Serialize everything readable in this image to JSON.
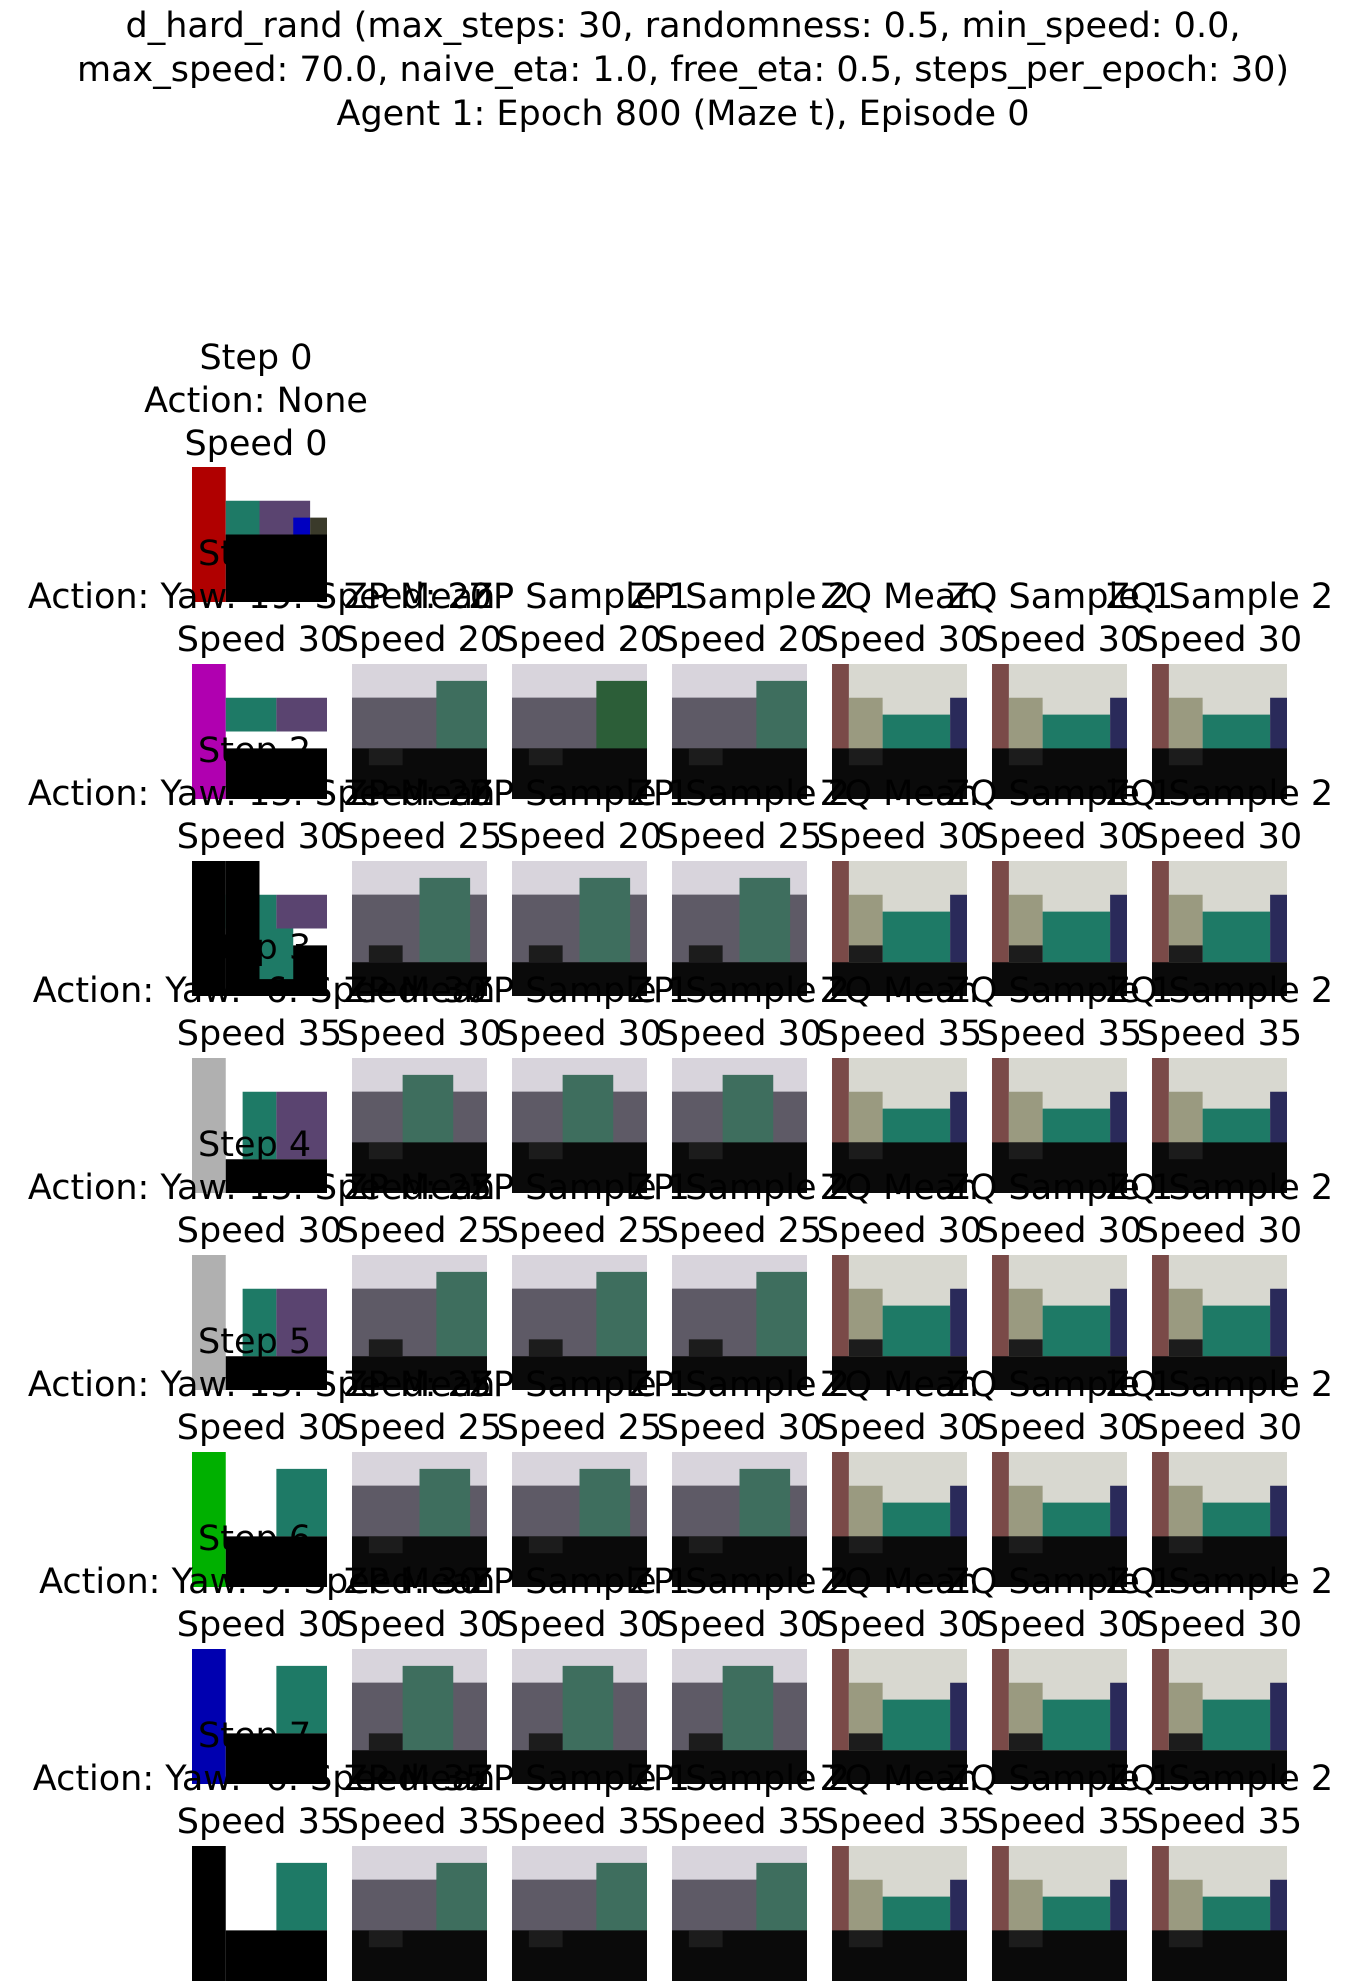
{
  "title": {
    "line1": "d_hard_rand (max_steps: 30, randomness: 0.5, min_speed: 0.0,",
    "line2": "max_speed: 70.0, naive_eta: 1.0, free_eta: 0.5, steps_per_epoch: 30)",
    "line3": "Agent 1: Epoch 800 (Maze t), Episode 0"
  },
  "first": {
    "step": "Step 0",
    "action": "Action: None",
    "speed": "Speed 0"
  },
  "overlays": [
    "Step 1",
    "Step 2",
    "Step 3",
    "Step 4",
    "Step 5",
    "Step 6",
    "Step 7"
  ],
  "rows": [
    {
      "action": "Action: Yaw: 19. Speed: 20",
      "labels": [
        "ZP Mean",
        "ZP Sample 1",
        "ZP Sample 2",
        "ZQ Mean",
        "ZQ Sample 1",
        "ZQ Sample 2"
      ],
      "speeds": [
        "Speed 30",
        "Speed 20",
        "Speed 20",
        "Speed 20",
        "Speed 30",
        "Speed 30",
        "Speed 30"
      ]
    },
    {
      "action": "Action: Yaw: 13. Speed: 20",
      "labels": [
        "ZP Mean",
        "ZP Sample 1",
        "ZP Sample 2",
        "ZQ Mean",
        "ZQ Sample 1",
        "ZQ Sample 2"
      ],
      "speeds": [
        "Speed 30",
        "Speed 25",
        "Speed 20",
        "Speed 25",
        "Speed 30",
        "Speed 30",
        "Speed 30"
      ]
    },
    {
      "action": "Action: Yaw: -6. Speed: 30",
      "labels": [
        "ZP Mean",
        "ZP Sample 1",
        "ZP Sample 2",
        "ZQ Mean",
        "ZQ Sample 1",
        "ZQ Sample 2"
      ],
      "speeds": [
        "Speed 35",
        "Speed 30",
        "Speed 30",
        "Speed 30",
        "Speed 35",
        "Speed 35",
        "Speed 35"
      ]
    },
    {
      "action": "Action: Yaw: 13. Speed: 25",
      "labels": [
        "ZP Mean",
        "ZP Sample 1",
        "ZP Sample 2",
        "ZQ Mean",
        "ZQ Sample 1",
        "ZQ Sample 2"
      ],
      "speeds": [
        "Speed 30",
        "Speed 25",
        "Speed 25",
        "Speed 25",
        "Speed 30",
        "Speed 30",
        "Speed 30"
      ]
    },
    {
      "action": "Action: Yaw: 13. Speed: 25",
      "labels": [
        "ZP Mean",
        "ZP Sample 1",
        "ZP Sample 2",
        "ZQ Mean",
        "ZQ Sample 1",
        "ZQ Sample 2"
      ],
      "speeds": [
        "Speed 30",
        "Speed 25",
        "Speed 25",
        "Speed 30",
        "Speed 30",
        "Speed 30",
        "Speed 30"
      ]
    },
    {
      "action": "Action: Yaw: 9. Speed: 30",
      "labels": [
        "ZP Mean",
        "ZP Sample 1",
        "ZP Sample 2",
        "ZQ Mean",
        "ZQ Sample 1",
        "ZQ Sample 2"
      ],
      "speeds": [
        "Speed 30",
        "Speed 30",
        "Speed 30",
        "Speed 30",
        "Speed 30",
        "Speed 30",
        "Speed 30"
      ]
    },
    {
      "action": "Action: Yaw: -6. Speed: 35",
      "labels": [
        "ZP Mean",
        "ZP Sample 1",
        "ZP Sample 2",
        "ZQ Mean",
        "ZQ Sample 1",
        "ZQ Sample 2"
      ],
      "speeds": [
        "Speed 35",
        "Speed 35",
        "Speed 35",
        "Speed 35",
        "Speed 35",
        "Speed 35",
        "Speed 35"
      ]
    }
  ],
  "colors": {
    "red": "#b00000",
    "magenta": "#b000b0",
    "gray": "#b0b0b0",
    "green": "#00b000",
    "blue": "#0000b0",
    "teal": "#1e7a66",
    "purple": "#5a4470",
    "black": "#000000",
    "white": "#ffffff",
    "predict_gray": "#5e5a66",
    "predict_green": "#2c5e38",
    "brick": "#7a4a48"
  }
}
